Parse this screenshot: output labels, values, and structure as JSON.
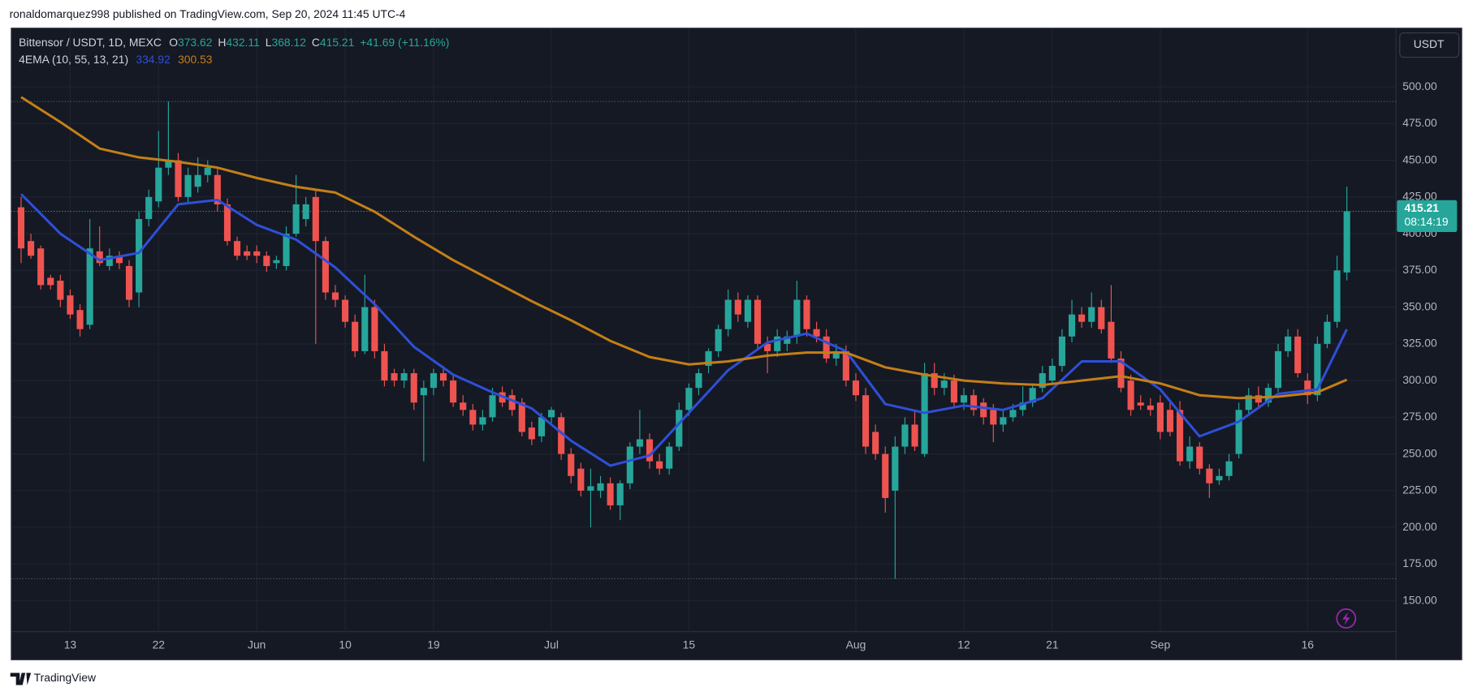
{
  "header": {
    "byline": "ronaldomarquez998 published on TradingView.com, Sep 20, 2024 11:45 UTC-4",
    "symbol": "Bittensor / USDT, 1D, MEXC",
    "ohlc_labels": [
      "O",
      "H",
      "L",
      "C"
    ],
    "change": "+41.69 (+11.16%)",
    "indicator": "4EMA (10, 55, 13, 21)",
    "currency": "USDT",
    "countdown": "08:14:19",
    "brand": "TradingView"
  },
  "chart_data": {
    "type": "candlestick",
    "up_color": "#26a69a",
    "down_color": "#ef5350",
    "grid": true,
    "x": [
      "2024-05-08",
      "2024-05-09",
      "2024-05-10",
      "2024-05-11",
      "2024-05-12",
      "2024-05-13",
      "2024-05-14",
      "2024-05-15",
      "2024-05-16",
      "2024-05-17",
      "2024-05-18",
      "2024-05-19",
      "2024-05-20",
      "2024-05-21",
      "2024-05-22",
      "2024-05-23",
      "2024-05-24",
      "2024-05-25",
      "2024-05-26",
      "2024-05-27",
      "2024-05-28",
      "2024-05-29",
      "2024-05-30",
      "2024-05-31",
      "2024-06-01",
      "2024-06-02",
      "2024-06-03",
      "2024-06-04",
      "2024-06-05",
      "2024-06-06",
      "2024-06-07",
      "2024-06-08",
      "2024-06-09",
      "2024-06-10",
      "2024-06-11",
      "2024-06-12",
      "2024-06-13",
      "2024-06-14",
      "2024-06-15",
      "2024-06-16",
      "2024-06-17",
      "2024-06-18",
      "2024-06-19",
      "2024-06-20",
      "2024-06-21",
      "2024-06-22",
      "2024-06-23",
      "2024-06-24",
      "2024-06-25",
      "2024-06-26",
      "2024-06-27",
      "2024-06-28",
      "2024-06-29",
      "2024-06-30",
      "2024-07-01",
      "2024-07-02",
      "2024-07-03",
      "2024-07-04",
      "2024-07-05",
      "2024-07-06",
      "2024-07-07",
      "2024-07-08",
      "2024-07-09",
      "2024-07-10",
      "2024-07-11",
      "2024-07-12",
      "2024-07-13",
      "2024-07-14",
      "2024-07-15",
      "2024-07-16",
      "2024-07-17",
      "2024-07-18",
      "2024-07-19",
      "2024-07-20",
      "2024-07-21",
      "2024-07-22",
      "2024-07-23",
      "2024-07-24",
      "2024-07-25",
      "2024-07-26",
      "2024-07-27",
      "2024-07-28",
      "2024-07-29",
      "2024-07-30",
      "2024-07-31",
      "2024-08-01",
      "2024-08-02",
      "2024-08-03",
      "2024-08-04",
      "2024-08-05",
      "2024-08-06",
      "2024-08-07",
      "2024-08-08",
      "2024-08-09",
      "2024-08-10",
      "2024-08-11",
      "2024-08-12",
      "2024-08-13",
      "2024-08-14",
      "2024-08-15",
      "2024-08-16",
      "2024-08-17",
      "2024-08-18",
      "2024-08-19",
      "2024-08-20",
      "2024-08-21",
      "2024-08-22",
      "2024-08-23",
      "2024-08-24",
      "2024-08-25",
      "2024-08-26",
      "2024-08-27",
      "2024-08-28",
      "2024-08-29",
      "2024-08-30",
      "2024-08-31",
      "2024-09-01",
      "2024-09-02",
      "2024-09-03",
      "2024-09-04",
      "2024-09-05",
      "2024-09-06",
      "2024-09-07",
      "2024-09-08",
      "2024-09-09",
      "2024-09-10",
      "2024-09-11",
      "2024-09-12",
      "2024-09-13",
      "2024-09-14",
      "2024-09-15",
      "2024-09-16",
      "2024-09-17",
      "2024-09-18",
      "2024-09-19",
      "2024-09-20"
    ],
    "open": [
      418,
      395,
      390,
      370,
      368,
      358,
      348,
      338,
      388,
      378,
      385,
      378,
      360,
      410,
      422,
      445,
      450,
      425,
      432,
      440,
      440,
      420,
      395,
      388,
      388,
      385,
      380,
      378,
      400,
      410,
      425,
      395,
      360,
      355,
      340,
      320,
      350,
      320,
      305,
      300,
      305,
      290,
      295,
      305,
      300,
      285,
      280,
      270,
      275,
      292,
      290,
      285,
      268,
      262,
      275,
      275,
      250,
      240,
      225,
      225,
      230,
      215,
      230,
      255,
      260,
      245,
      240,
      255,
      280,
      295,
      310,
      320,
      335,
      355,
      340,
      355,
      325,
      320,
      325,
      330,
      355,
      335,
      330,
      315,
      320,
      300,
      290,
      265,
      250,
      225,
      255,
      270,
      250,
      305,
      295,
      300,
      285,
      290,
      285,
      280,
      270,
      275,
      280,
      285,
      295,
      300,
      310,
      330,
      345,
      340,
      350,
      340,
      315,
      300,
      285,
      283,
      285,
      280,
      280,
      245,
      255,
      240,
      232,
      235,
      250,
      280,
      290,
      285,
      295,
      320,
      330,
      300,
      290,
      325,
      340,
      373.62
    ],
    "high": [
      425,
      400,
      392,
      372,
      372,
      362,
      352,
      410,
      405,
      390,
      388,
      382,
      415,
      430,
      470,
      490,
      455,
      445,
      452,
      450,
      445,
      424,
      398,
      392,
      392,
      388,
      385,
      405,
      440,
      425,
      430,
      398,
      365,
      358,
      345,
      372,
      355,
      325,
      308,
      308,
      308,
      300,
      308,
      310,
      304,
      290,
      284,
      280,
      295,
      296,
      294,
      288,
      272,
      278,
      282,
      278,
      254,
      244,
      240,
      235,
      234,
      232,
      258,
      280,
      264,
      250,
      258,
      285,
      298,
      308,
      322,
      338,
      362,
      360,
      358,
      358,
      330,
      335,
      334,
      368,
      358,
      340,
      335,
      325,
      324,
      305,
      295,
      270,
      255,
      262,
      275,
      280,
      312,
      312,
      305,
      304,
      295,
      294,
      288,
      284,
      280,
      284,
      296,
      298,
      310,
      315,
      335,
      355,
      350,
      360,
      355,
      365,
      320,
      304,
      290,
      288,
      290,
      285,
      286,
      262,
      258,
      243,
      240,
      250,
      285,
      295,
      296,
      298,
      325,
      335,
      335,
      305,
      330,
      345,
      385,
      432.11
    ],
    "low": [
      380,
      383,
      362,
      362,
      350,
      342,
      330,
      335,
      378,
      375,
      376,
      350,
      350,
      405,
      418,
      440,
      422,
      420,
      428,
      435,
      415,
      392,
      382,
      382,
      380,
      374,
      376,
      375,
      398,
      405,
      325,
      355,
      350,
      336,
      316,
      318,
      315,
      296,
      296,
      295,
      280,
      245,
      290,
      296,
      282,
      276,
      266,
      266,
      272,
      282,
      276,
      262,
      256,
      258,
      270,
      246,
      230,
      221,
      200,
      220,
      212,
      205,
      226,
      250,
      240,
      236,
      236,
      252,
      276,
      290,
      305,
      316,
      330,
      340,
      336,
      322,
      305,
      316,
      320,
      325,
      330,
      326,
      312,
      310,
      296,
      286,
      250,
      246,
      210,
      165,
      250,
      252,
      248,
      290,
      290,
      282,
      280,
      276,
      270,
      258,
      265,
      272,
      276,
      282,
      292,
      298,
      306,
      326,
      336,
      336,
      332,
      312,
      292,
      276,
      280,
      276,
      260,
      262,
      242,
      240,
      236,
      220,
      229,
      232,
      247,
      276,
      282,
      282,
      292,
      316,
      302,
      284,
      286,
      322,
      336,
      368.12
    ],
    "close": [
      390,
      385,
      365,
      365,
      355,
      345,
      335,
      390,
      380,
      385,
      380,
      355,
      410,
      425,
      445,
      450,
      425,
      440,
      440,
      445,
      420,
      395,
      385,
      385,
      385,
      378,
      382,
      400,
      420,
      420,
      395,
      360,
      355,
      340,
      320,
      350,
      320,
      300,
      300,
      305,
      285,
      295,
      305,
      300,
      285,
      280,
      270,
      275,
      290,
      285,
      280,
      265,
      260,
      275,
      280,
      250,
      235,
      225,
      228,
      230,
      215,
      230,
      255,
      260,
      245,
      240,
      255,
      280,
      295,
      305,
      320,
      335,
      355,
      345,
      355,
      325,
      320,
      330,
      330,
      355,
      335,
      330,
      315,
      320,
      300,
      290,
      255,
      250,
      220,
      255,
      270,
      255,
      305,
      295,
      300,
      285,
      290,
      280,
      275,
      270,
      275,
      280,
      285,
      295,
      305,
      310,
      330,
      345,
      340,
      350,
      335,
      315,
      295,
      280,
      283,
      280,
      265,
      265,
      245,
      255,
      240,
      230,
      235,
      245,
      280,
      290,
      285,
      295,
      320,
      330,
      305,
      290,
      325,
      340,
      375,
      415.21
    ],
    "series": [
      {
        "color": "#2f4fd8",
        "x": [
          "2024-05-08",
          "2024-05-12",
          "2024-05-16",
          "2024-05-20",
          "2024-05-24",
          "2024-05-28",
          "2024-06-01",
          "2024-06-05",
          "2024-06-09",
          "2024-06-13",
          "2024-06-17",
          "2024-06-21",
          "2024-06-25",
          "2024-06-29",
          "2024-07-03",
          "2024-07-07",
          "2024-07-11",
          "2024-07-15",
          "2024-07-19",
          "2024-07-23",
          "2024-07-27",
          "2024-07-31",
          "2024-08-04",
          "2024-08-08",
          "2024-08-12",
          "2024-08-16",
          "2024-08-20",
          "2024-08-24",
          "2024-08-28",
          "2024-09-01",
          "2024-09-05",
          "2024-09-09",
          "2024-09-13",
          "2024-09-17",
          "2024-09-20"
        ],
        "values": [
          427,
          400,
          382,
          387,
          420,
          423,
          406,
          396,
          377,
          352,
          323,
          304,
          292,
          281,
          259,
          242,
          249,
          278,
          307,
          326,
          332,
          320,
          284,
          278,
          283,
          280,
          288,
          313,
          313,
          294,
          262,
          272,
          291,
          294,
          334.92
        ]
      },
      {
        "color": "#c47f17",
        "x": [
          "2024-05-08",
          "2024-05-12",
          "2024-05-16",
          "2024-05-20",
          "2024-05-24",
          "2024-05-28",
          "2024-06-01",
          "2024-06-05",
          "2024-06-09",
          "2024-06-13",
          "2024-06-17",
          "2024-06-21",
          "2024-06-25",
          "2024-06-29",
          "2024-07-03",
          "2024-07-07",
          "2024-07-11",
          "2024-07-15",
          "2024-07-19",
          "2024-07-23",
          "2024-07-27",
          "2024-07-31",
          "2024-08-04",
          "2024-08-08",
          "2024-08-12",
          "2024-08-16",
          "2024-08-20",
          "2024-08-24",
          "2024-08-28",
          "2024-09-01",
          "2024-09-05",
          "2024-09-09",
          "2024-09-13",
          "2024-09-17",
          "2024-09-20"
        ],
        "values": [
          493,
          476,
          458,
          452,
          449,
          445,
          438,
          432,
          428,
          415,
          398,
          382,
          368,
          354,
          341,
          327,
          316,
          311,
          313,
          317,
          319,
          319,
          309,
          304,
          300,
          298,
          297,
          300,
          303,
          298,
          290,
          288,
          289,
          292,
          300.53
        ]
      }
    ],
    "xlim": [
      "2024-05-07",
      "2024-09-25"
    ],
    "xticks": [
      {
        "value": "2024-05-13",
        "label": "13"
      },
      {
        "value": "2024-05-22",
        "label": "22"
      },
      {
        "value": "2024-06-01",
        "label": "Jun"
      },
      {
        "value": "2024-06-10",
        "label": "10"
      },
      {
        "value": "2024-06-19",
        "label": "19"
      },
      {
        "value": "2024-07-01",
        "label": "Jul"
      },
      {
        "value": "2024-07-15",
        "label": "15"
      },
      {
        "value": "2024-08-01",
        "label": "Aug"
      },
      {
        "value": "2024-08-12",
        "label": "12"
      },
      {
        "value": "2024-08-21",
        "label": "21"
      },
      {
        "value": "2024-09-01",
        "label": "Sep"
      },
      {
        "value": "2024-09-16",
        "label": "16"
      }
    ],
    "ylim": [
      129,
      540
    ],
    "yticks": [
      {
        "value": 150,
        "label": "150.00"
      },
      {
        "value": 175,
        "label": "175.00"
      },
      {
        "value": 200,
        "label": "200.00"
      },
      {
        "value": 225,
        "label": "225.00"
      },
      {
        "value": 250,
        "label": "250.00"
      },
      {
        "value": 275,
        "label": "275.00"
      },
      {
        "value": 300,
        "label": "300.00"
      },
      {
        "value": 325,
        "label": "325.00"
      },
      {
        "value": 350,
        "label": "350.00"
      },
      {
        "value": 375,
        "label": "375.00"
      },
      {
        "value": 400,
        "label": "400.00"
      },
      {
        "value": 425,
        "label": "425.00"
      },
      {
        "value": 450,
        "label": "450.00"
      },
      {
        "value": 475,
        "label": "475.00"
      },
      {
        "value": 500,
        "label": "500.00"
      }
    ]
  }
}
